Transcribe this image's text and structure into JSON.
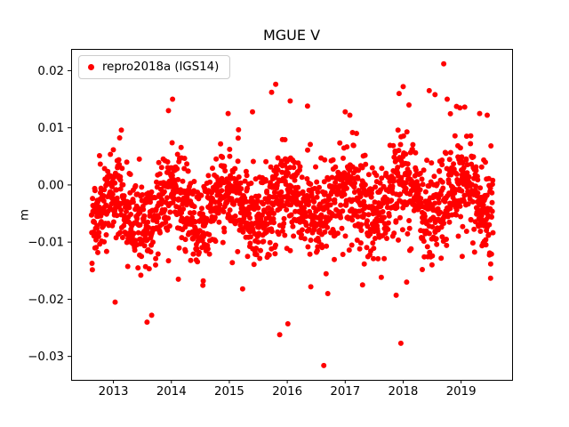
{
  "figure": {
    "title": "MGUE V"
  },
  "chart_data": {
    "type": "scatter",
    "title": "MGUE V",
    "xlabel": "",
    "ylabel": "m",
    "grid": false,
    "legend": {
      "label": "repro2018a (IGS14)",
      "position": "upper left"
    },
    "axes": {
      "xlim": [
        2012.27,
        2019.88
      ],
      "ylim": [
        -0.0341,
        0.0238
      ],
      "xticks": [
        2013,
        2014,
        2015,
        2016,
        2017,
        2018,
        2019
      ],
      "xtick_labels": [
        "2013",
        "2014",
        "2015",
        "2016",
        "2017",
        "2018",
        "2019"
      ],
      "yticks": [
        -0.03,
        -0.02,
        -0.01,
        0.0,
        0.01,
        0.02
      ],
      "ytick_labels": [
        "−0.03",
        "−0.02",
        "−0.01",
        "0.00",
        "0.01",
        "0.02"
      ]
    },
    "series": [
      {
        "name": "repro2018a (IGS14)",
        "color": "#ff0000",
        "marker": "circle",
        "marker_radius_px": 3,
        "n_points": 1900,
        "x_start": 2012.62,
        "x_end": 2019.55,
        "generator": {
          "seed": 20181,
          "mean": -0.0032,
          "trend_per_year": 0.0004,
          "seasonal_amplitude": 0.0028,
          "noise_sd": 0.004,
          "neg_tail_prob": 0.025,
          "neg_tail_max": 0.008
        },
        "feature_points": [
          [
            2013.03,
            -0.0205
          ],
          [
            2013.58,
            -0.024
          ],
          [
            2013.66,
            -0.0228
          ],
          [
            2014.12,
            -0.0165
          ],
          [
            2014.55,
            -0.0168
          ],
          [
            2015.23,
            -0.0182
          ],
          [
            2015.87,
            -0.0262
          ],
          [
            2016.01,
            -0.0243
          ],
          [
            2016.63,
            -0.0316
          ],
          [
            2016.7,
            -0.019
          ],
          [
            2017.3,
            -0.0175
          ],
          [
            2017.88,
            -0.0193
          ],
          [
            2017.96,
            -0.0277
          ],
          [
            2018.06,
            -0.017
          ],
          [
            2018.33,
            -0.0148
          ],
          [
            2019.02,
            -0.0125
          ],
          [
            2019.38,
            -0.0102
          ],
          [
            2013.95,
            0.013
          ],
          [
            2014.02,
            0.015
          ],
          [
            2014.98,
            0.0125
          ],
          [
            2015.4,
            0.0128
          ],
          [
            2015.73,
            0.0162
          ],
          [
            2015.8,
            0.0176
          ],
          [
            2016.05,
            0.0147
          ],
          [
            2016.35,
            0.0138
          ],
          [
            2017.0,
            0.0128
          ],
          [
            2017.08,
            0.0122
          ],
          [
            2017.93,
            0.016
          ],
          [
            2018.0,
            0.0172
          ],
          [
            2018.1,
            0.014
          ],
          [
            2018.45,
            0.0165
          ],
          [
            2018.55,
            0.0158
          ],
          [
            2018.7,
            0.0212
          ],
          [
            2018.76,
            0.015
          ],
          [
            2018.98,
            0.0135
          ],
          [
            2019.32,
            0.0125
          ],
          [
            2019.45,
            0.0122
          ]
        ]
      }
    ]
  }
}
